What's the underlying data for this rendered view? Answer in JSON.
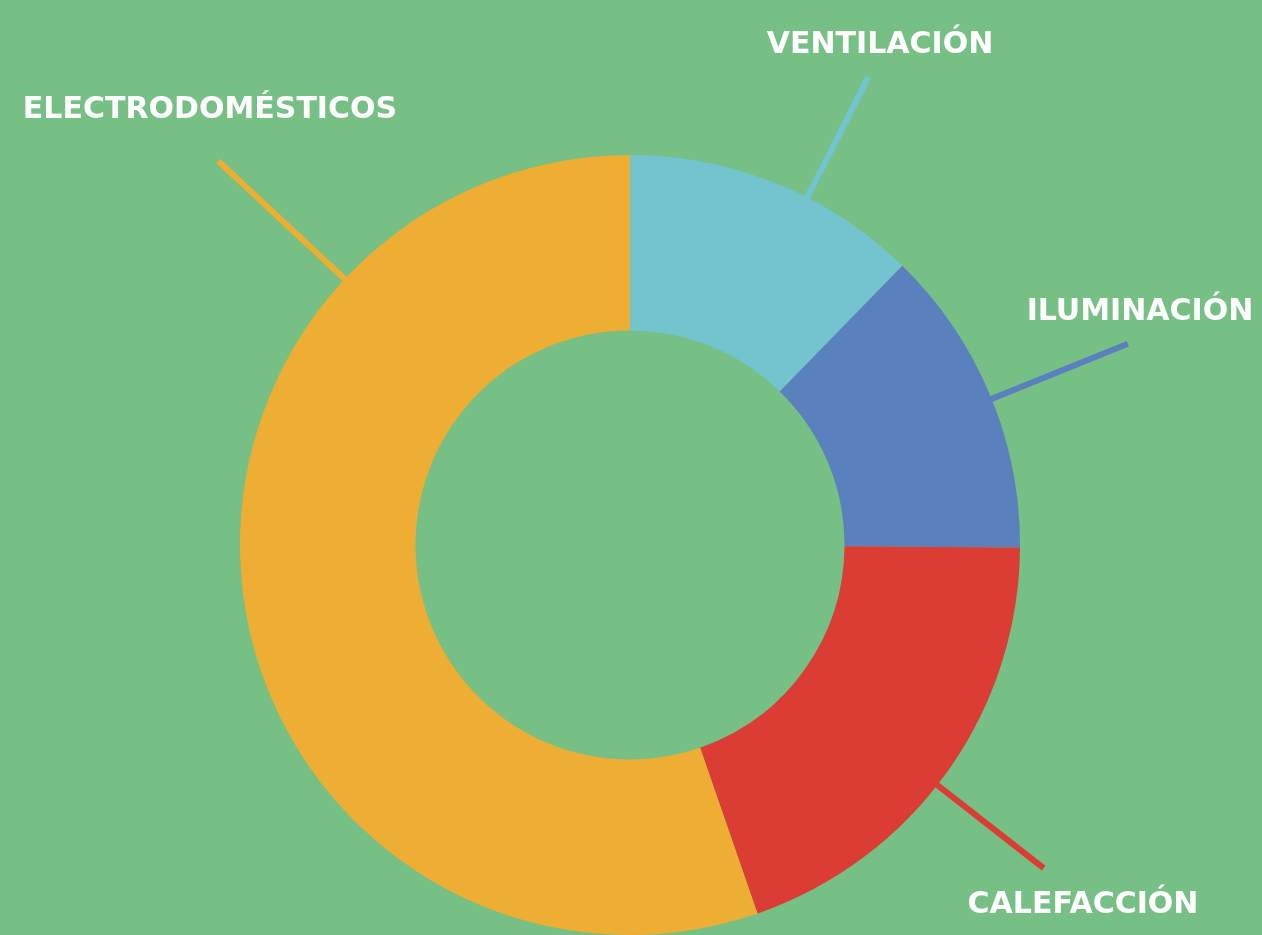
{
  "chart_data": {
    "type": "donut",
    "categories": [
      "VENTILACIÓN",
      "ILUMINACIÓN",
      "CALEFACCIÓN",
      "ELECTRODOMÉSTICOS"
    ],
    "values": [
      12.3,
      12.8,
      19.6,
      55.3
    ],
    "colors": [
      "#74c4d0",
      "#5b80be",
      "#db3c34",
      "#edae33"
    ],
    "legend": false
  }
}
